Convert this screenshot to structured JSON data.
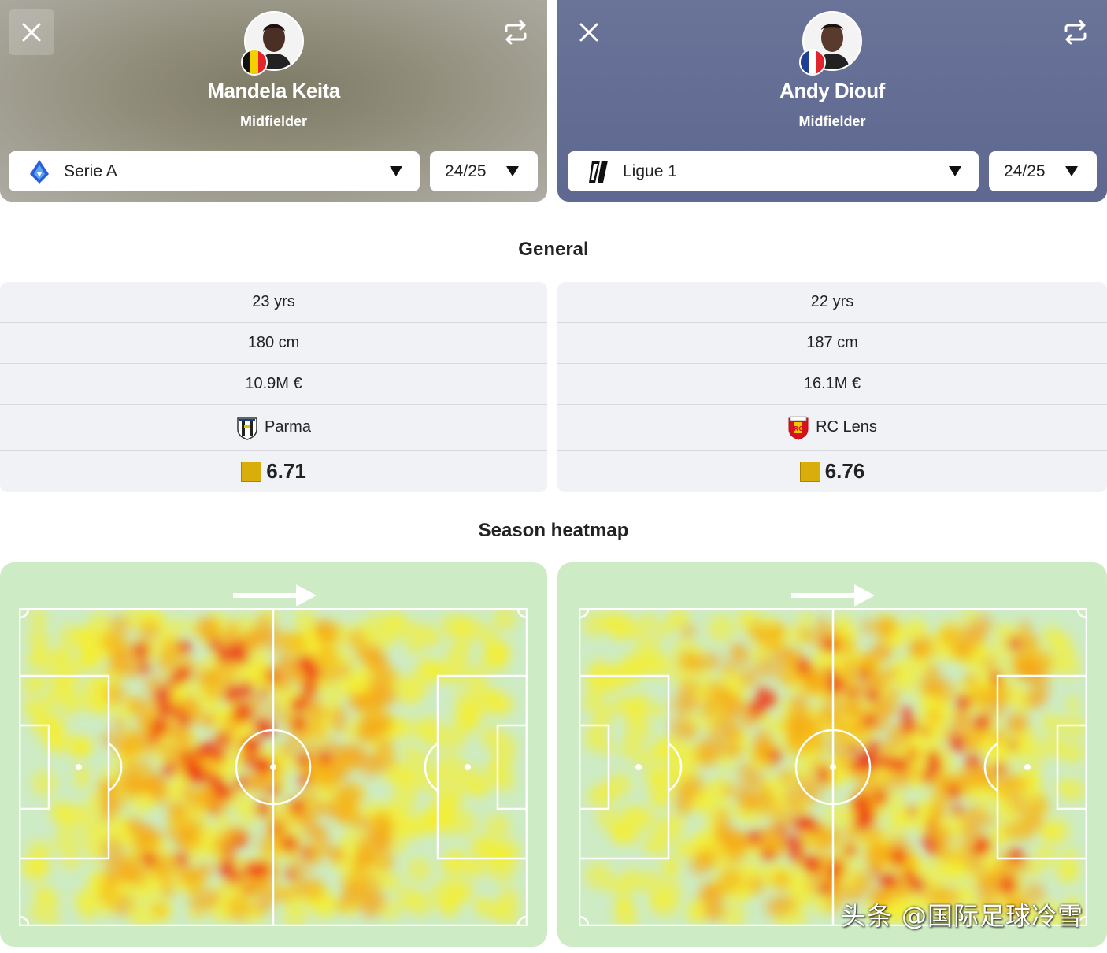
{
  "players": [
    {
      "name": "Mandela Keita",
      "position": "Midfielder",
      "flag_colors": [
        "#111111",
        "#f5d000",
        "#e4262c"
      ],
      "league": "Serie A",
      "league_icon": "serie-a-logo",
      "season": "24/25",
      "general": {
        "age": "23 yrs",
        "height": "180 cm",
        "value": "10.9M €",
        "club": "Parma",
        "club_icon": "parma-crest",
        "rating": "6.71"
      }
    },
    {
      "name": "Andy Diouf",
      "position": "Midfielder",
      "flag_colors": [
        "#1f3e95",
        "#ffffff",
        "#e1252f"
      ],
      "league": "Ligue 1",
      "league_icon": "ligue-1-logo",
      "season": "24/25",
      "general": {
        "age": "22 yrs",
        "height": "187 cm",
        "value": "16.1M €",
        "club": "RC Lens",
        "club_icon": "rc-lens-crest",
        "rating": "6.76"
      }
    }
  ],
  "sections": {
    "general": "General",
    "heatmap": "Season heatmap"
  },
  "colors": {
    "rating_badge": "#d9ae0b",
    "pitch": "#cdebc5",
    "left_card": "#8e8b78",
    "right_card": "#646d94"
  },
  "watermark": "头条 @国际足球冷雪"
}
